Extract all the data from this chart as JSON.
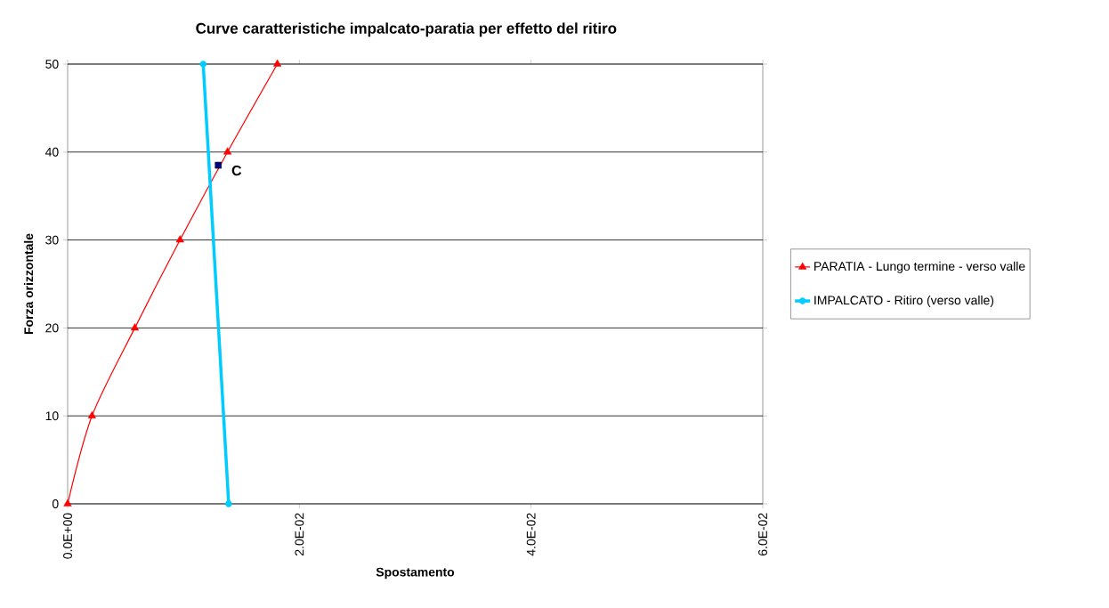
{
  "chart_data": {
    "type": "line",
    "title": "Curve caratteristiche impalcato-paratia per effetto del ritiro",
    "xlabel": "Spostamento",
    "ylabel": "Forza orizzontale",
    "xlim": [
      0,
      0.06
    ],
    "ylim": [
      0,
      50
    ],
    "xticks": [
      {
        "value": 0,
        "label": "0.0E+00"
      },
      {
        "value": 0.02,
        "label": "2.0E-02"
      },
      {
        "value": 0.04,
        "label": "4.0E-02"
      },
      {
        "value": 0.06,
        "label": "6.0E-02"
      }
    ],
    "yticks": [
      0,
      10,
      20,
      30,
      40,
      50
    ],
    "grid": "y",
    "legend": "right",
    "series": [
      {
        "name": "PARATIA - Lungo termine - verso valle",
        "color": "#ff0000",
        "marker": "triangle",
        "x": [
          0,
          0.0021,
          0.0058,
          0.0097,
          0.0138,
          0.0181
        ],
        "values": [
          0,
          10,
          20,
          30,
          40,
          50
        ]
      },
      {
        "name": "IMPALCATO - Ritiro (verso valle)",
        "color": "#00ccff",
        "marker": "circle",
        "x": [
          0.0139,
          0.0117
        ],
        "values": [
          0,
          50
        ]
      },
      {
        "type": "scatter",
        "color": "#000080",
        "marker": "square",
        "x": [
          0.013
        ],
        "values": [
          38.5
        ]
      }
    ],
    "annotations": [
      {
        "text": "C",
        "x": 0.013,
        "y": 38.5
      }
    ]
  }
}
